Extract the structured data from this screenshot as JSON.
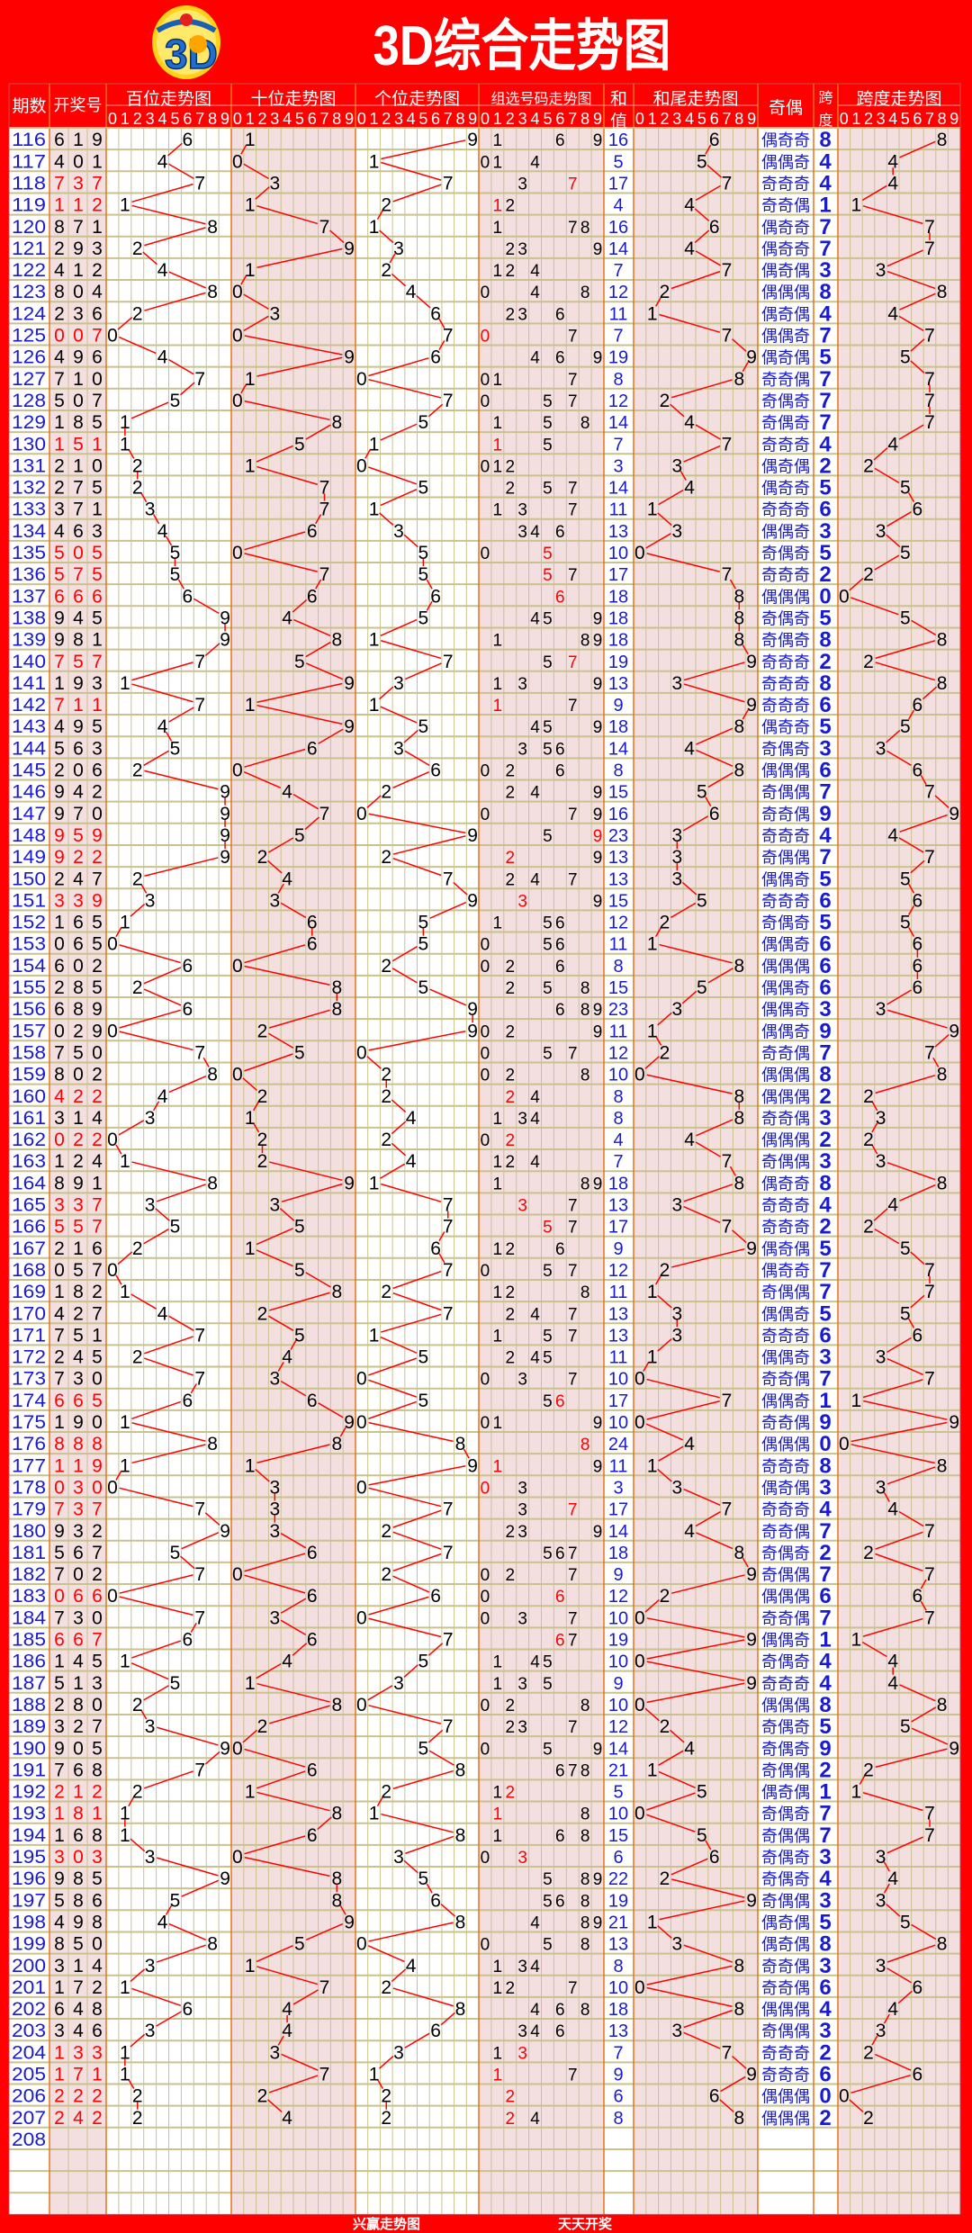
{
  "title": "3D综合走势图",
  "logo_text": "3D",
  "headers": {
    "issue": "期数",
    "draw": "开奖号",
    "hundreds": "百位走势图",
    "tens": "十位走势图",
    "units": "个位走势图",
    "group": "组选号码走势图",
    "sum_top": "和",
    "sum_bottom": "值",
    "tail": "和尾走势图",
    "parity": "奇偶",
    "span_top": "跨",
    "span_bottom": "度",
    "span_trend": "跨度走势图",
    "digits": [
      "0",
      "1",
      "2",
      "3",
      "4",
      "5",
      "6",
      "7",
      "8",
      "9"
    ]
  },
  "footer": {
    "left": "兴赢走势图",
    "right": "天天开奖"
  },
  "parity_labels": {
    "odd": "奇",
    "even": "偶"
  },
  "colors": {
    "frame": "#ff0000",
    "shade": "#f3dfdf",
    "grid": "#c9c28e",
    "separator": "#e8731a",
    "blue": "#1a1ad0",
    "trend_line": "#ff0000",
    "repeat": "#ff0000"
  },
  "draws": [
    {
      "issue": "116",
      "number": "619"
    },
    {
      "issue": "117",
      "number": "401"
    },
    {
      "issue": "118",
      "number": "737"
    },
    {
      "issue": "119",
      "number": "112"
    },
    {
      "issue": "120",
      "number": "871"
    },
    {
      "issue": "121",
      "number": "293"
    },
    {
      "issue": "122",
      "number": "412"
    },
    {
      "issue": "123",
      "number": "804"
    },
    {
      "issue": "124",
      "number": "236"
    },
    {
      "issue": "125",
      "number": "007"
    },
    {
      "issue": "126",
      "number": "496"
    },
    {
      "issue": "127",
      "number": "710"
    },
    {
      "issue": "128",
      "number": "507"
    },
    {
      "issue": "129",
      "number": "185"
    },
    {
      "issue": "130",
      "number": "151"
    },
    {
      "issue": "131",
      "number": "210"
    },
    {
      "issue": "132",
      "number": "275"
    },
    {
      "issue": "133",
      "number": "371"
    },
    {
      "issue": "134",
      "number": "463"
    },
    {
      "issue": "135",
      "number": "505"
    },
    {
      "issue": "136",
      "number": "575"
    },
    {
      "issue": "137",
      "number": "666"
    },
    {
      "issue": "138",
      "number": "945"
    },
    {
      "issue": "139",
      "number": "981"
    },
    {
      "issue": "140",
      "number": "757"
    },
    {
      "issue": "141",
      "number": "193"
    },
    {
      "issue": "142",
      "number": "711"
    },
    {
      "issue": "143",
      "number": "495"
    },
    {
      "issue": "144",
      "number": "563"
    },
    {
      "issue": "145",
      "number": "206"
    },
    {
      "issue": "146",
      "number": "942"
    },
    {
      "issue": "147",
      "number": "970"
    },
    {
      "issue": "148",
      "number": "959"
    },
    {
      "issue": "149",
      "number": "922"
    },
    {
      "issue": "150",
      "number": "247"
    },
    {
      "issue": "151",
      "number": "339"
    },
    {
      "issue": "152",
      "number": "165"
    },
    {
      "issue": "153",
      "number": "065"
    },
    {
      "issue": "154",
      "number": "602"
    },
    {
      "issue": "155",
      "number": "285"
    },
    {
      "issue": "156",
      "number": "689"
    },
    {
      "issue": "157",
      "number": "029"
    },
    {
      "issue": "158",
      "number": "750"
    },
    {
      "issue": "159",
      "number": "802"
    },
    {
      "issue": "160",
      "number": "422"
    },
    {
      "issue": "161",
      "number": "314"
    },
    {
      "issue": "162",
      "number": "022"
    },
    {
      "issue": "163",
      "number": "124"
    },
    {
      "issue": "164",
      "number": "891"
    },
    {
      "issue": "165",
      "number": "337"
    },
    {
      "issue": "166",
      "number": "557"
    },
    {
      "issue": "167",
      "number": "216"
    },
    {
      "issue": "168",
      "number": "057"
    },
    {
      "issue": "169",
      "number": "182"
    },
    {
      "issue": "170",
      "number": "427"
    },
    {
      "issue": "171",
      "number": "751"
    },
    {
      "issue": "172",
      "number": "245"
    },
    {
      "issue": "173",
      "number": "730"
    },
    {
      "issue": "174",
      "number": "665"
    },
    {
      "issue": "175",
      "number": "190"
    },
    {
      "issue": "176",
      "number": "888"
    },
    {
      "issue": "177",
      "number": "119"
    },
    {
      "issue": "178",
      "number": "030"
    },
    {
      "issue": "179",
      "number": "737"
    },
    {
      "issue": "180",
      "number": "932"
    },
    {
      "issue": "181",
      "number": "567"
    },
    {
      "issue": "182",
      "number": "702"
    },
    {
      "issue": "183",
      "number": "066"
    },
    {
      "issue": "184",
      "number": "730"
    },
    {
      "issue": "185",
      "number": "667"
    },
    {
      "issue": "186",
      "number": "145"
    },
    {
      "issue": "187",
      "number": "513"
    },
    {
      "issue": "188",
      "number": "280"
    },
    {
      "issue": "189",
      "number": "327"
    },
    {
      "issue": "190",
      "number": "905"
    },
    {
      "issue": "191",
      "number": "768"
    },
    {
      "issue": "192",
      "number": "212"
    },
    {
      "issue": "193",
      "number": "181"
    },
    {
      "issue": "194",
      "number": "168"
    },
    {
      "issue": "195",
      "number": "303"
    },
    {
      "issue": "196",
      "number": "985"
    },
    {
      "issue": "197",
      "number": "586"
    },
    {
      "issue": "198",
      "number": "498"
    },
    {
      "issue": "199",
      "number": "850"
    },
    {
      "issue": "200",
      "number": "314"
    },
    {
      "issue": "201",
      "number": "172"
    },
    {
      "issue": "202",
      "number": "648"
    },
    {
      "issue": "203",
      "number": "346"
    },
    {
      "issue": "204",
      "number": "133"
    },
    {
      "issue": "205",
      "number": "171"
    },
    {
      "issue": "206",
      "number": "222"
    },
    {
      "issue": "207",
      "number": "242"
    },
    {
      "issue": "208",
      "number": ""
    }
  ]
}
